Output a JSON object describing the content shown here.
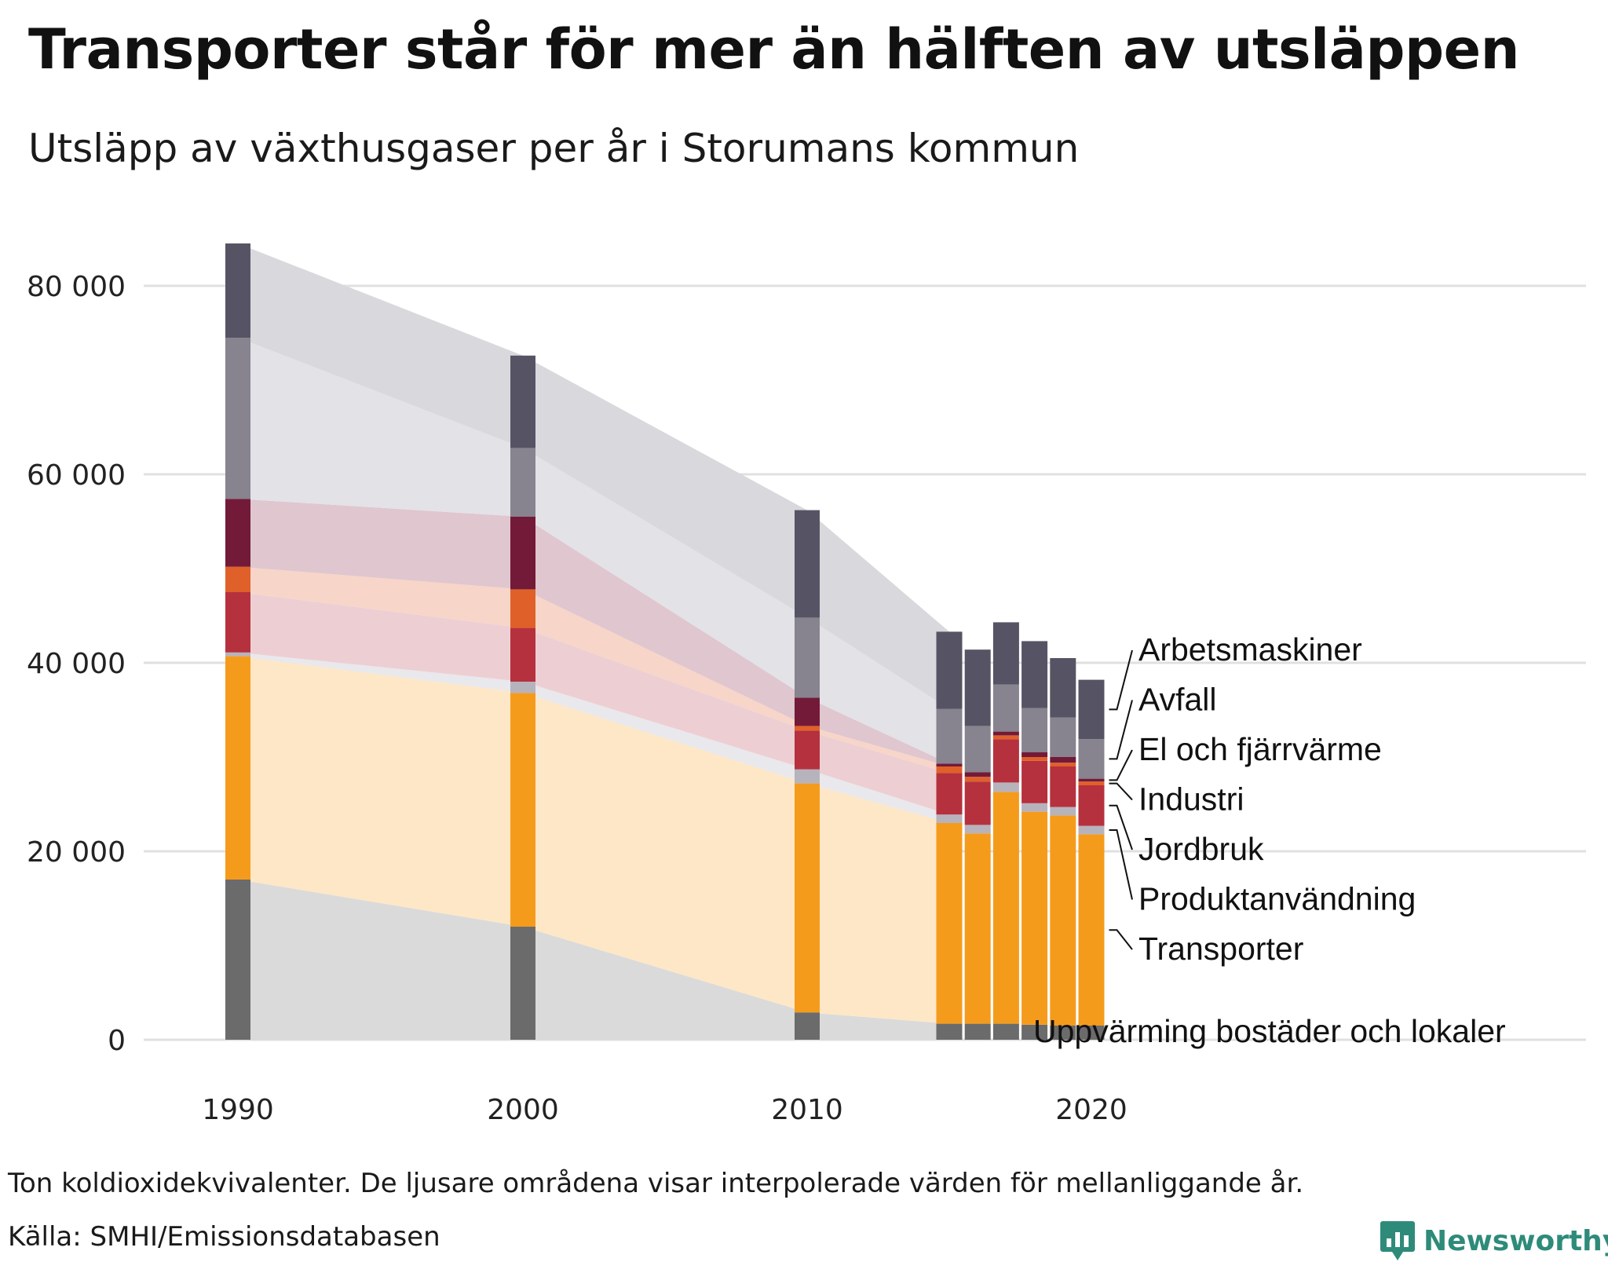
{
  "title": "Transporter står för mer än hälften av utsläppen",
  "subtitle": "Utsläpp av växthusgaser per år i Storumans kommun",
  "footnote": "Ton koldioxidekvivalenter. De ljusare områdena visar interpolerade värden för mellanliggande år.",
  "source": "Källa: SMHI/Emissionsdatabasen",
  "brand": {
    "name": "Newsworthy",
    "color": "#2e8b7a",
    "icon": "newsworthy-logo-icon"
  },
  "chart_data": {
    "type": "bar",
    "stacked": true,
    "title": "Utsläpp av växthusgaser per år i Storumans kommun",
    "xlabel": "",
    "ylabel": "Ton koldioxidekvivalenter",
    "ylim": [
      0,
      85000
    ],
    "grid": true,
    "yticks": [
      0,
      20000,
      40000,
      60000,
      80000
    ],
    "ytick_labels": [
      "0",
      "20 000",
      "40 000",
      "60 000",
      "80 000"
    ],
    "xticks": [
      1990,
      2000,
      2010,
      2020
    ],
    "xtick_labels": [
      "1990",
      "2000",
      "2010",
      "2020"
    ],
    "years": [
      1990,
      2000,
      2010,
      2015,
      2016,
      2017,
      2018,
      2019,
      2020
    ],
    "series": [
      {
        "name": "Uppvärming bostäder och lokaler",
        "color": "#6b6b6b",
        "band": "#dadada",
        "values": [
          17000,
          12000,
          2900,
          1700,
          1700,
          1700,
          1600,
          1500,
          1500
        ]
      },
      {
        "name": "Transporter",
        "color": "#f59b1c",
        "band": "#fde7c6",
        "values": [
          23700,
          24800,
          24300,
          21300,
          20200,
          24600,
          22600,
          22300,
          20300
        ]
      },
      {
        "name": "Produktanvändning",
        "color": "#b7b3bd",
        "band": "#e9e8ec",
        "values": [
          400,
          1200,
          1500,
          900,
          900,
          1000,
          900,
          900,
          900
        ]
      },
      {
        "name": "Jordbruk",
        "color": "#b5313d",
        "band": "#edcfd3",
        "values": [
          6400,
          5700,
          4100,
          4400,
          4600,
          4600,
          4500,
          4300,
          4300
        ]
      },
      {
        "name": "Industri",
        "color": "#e0602a",
        "band": "#f7d5c8",
        "values": [
          2700,
          4100,
          500,
          700,
          500,
          400,
          400,
          400,
          400
        ]
      },
      {
        "name": "El och fjärrvärme",
        "color": "#731a38",
        "band": "#dfc6cf",
        "values": [
          7200,
          7700,
          3000,
          300,
          500,
          400,
          500,
          600,
          300
        ]
      },
      {
        "name": "Avfall",
        "color": "#87838f",
        "band": "#e3e2e6",
        "values": [
          17100,
          7300,
          8500,
          5800,
          4900,
          5000,
          4700,
          4200,
          4200
        ]
      },
      {
        "name": "Arbetsmaskiner",
        "color": "#565464",
        "band": "#d9d8dc",
        "values": [
          10000,
          9800,
          11400,
          8200,
          8100,
          6600,
          7100,
          6300,
          6300
        ]
      }
    ]
  }
}
